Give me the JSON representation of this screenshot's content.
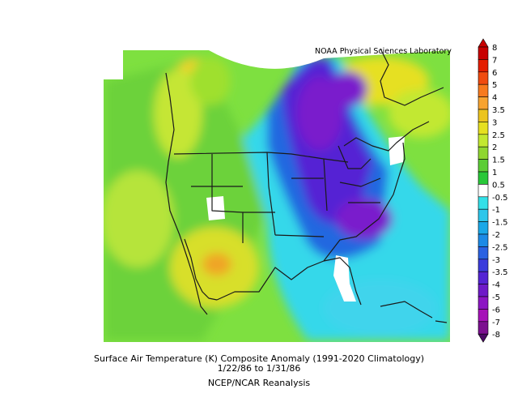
{
  "credit": "NOAA Physical Sciences Laboratory",
  "title": "Surface Air Temperature (K) Composite Anomaly (1991-2020 Climatology)",
  "date_range": "1/22/86  to 1/31/86",
  "source": "NCEP/NCAR Reanalysis",
  "legend": {
    "labels": [
      "8",
      "7",
      "6",
      "5",
      "4",
      "3.5",
      "3",
      "2.5",
      "2",
      "1.5",
      "1",
      "0.5",
      "-0.5",
      "-1",
      "-1.5",
      "-2",
      "-2.5",
      "-3",
      "-3.5",
      "-4",
      "-5",
      "-6",
      "-7",
      "-8"
    ],
    "colors": [
      "#c80000",
      "#e41d00",
      "#f04b10",
      "#f77a1e",
      "#f7a330",
      "#ecc41e",
      "#e6e020",
      "#c2e830",
      "#8fd630",
      "#5ccd36",
      "#28c838",
      "#ffffff",
      "#32e0e8",
      "#2cc6ea",
      "#1aa8e8",
      "#1c8ae6",
      "#2a62e2",
      "#3b3cdc",
      "#5424d4",
      "#6e1ac8",
      "#8c16c4",
      "#a612b8",
      "#7c1090",
      "#4c0a66"
    ]
  },
  "colors": {
    "ocean": "#7ee040",
    "land_warm": "#9fe02e",
    "cold_core": "#7a1ccc",
    "country_lines": "#1a1a1a"
  }
}
